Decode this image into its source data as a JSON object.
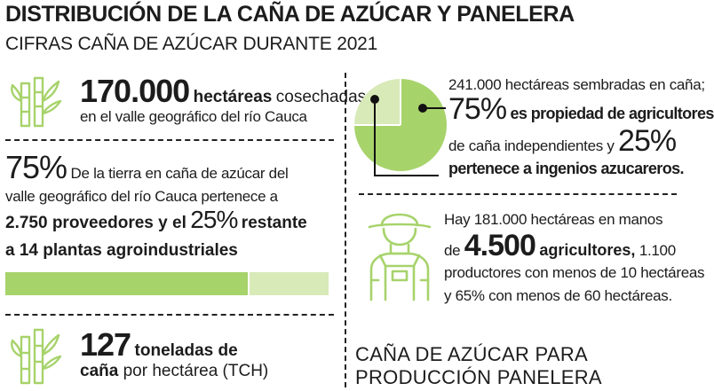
{
  "header": {
    "title": "DISTRIBUCIÓN DE LA CAÑA DE AZÚCAR Y PANELERA",
    "subtitle": "CIFRAS CAÑA DE AZÚCAR DURANTE 2021"
  },
  "block_hectares": {
    "value": "170.000",
    "unit": "hectáreas",
    "text1": "cosechadas",
    "text2": "en el valle geográfico del río Cauca",
    "icon": "sugarcane-icon"
  },
  "block_land": {
    "percent_big": "75%",
    "text1": "De la tierra en caña de azúcar del",
    "text2": "valle geográfico del río Cauca pertenece a",
    "text3_bold": "2.750 proveedores y el",
    "percent2": "25%",
    "text3_end": "restante",
    "text4_bold": "a 14 plantas agroindustriales",
    "bar_fraction": 0.75,
    "bar_color": "#a7d36b",
    "bar_bg_color": "#d8eab8"
  },
  "block_tch": {
    "value": "127",
    "unit": "toneladas de",
    "text2_bold": "caña",
    "text2": "por hectárea (TCH)",
    "icon": "sugarcane-icon"
  },
  "block_sown": {
    "text1": "241.000 hectáreas sembradas en caña;",
    "percent1": "75%",
    "text2": "es propiedad de agricultores",
    "text3": "de caña independientes y",
    "percent2": "25%",
    "text4": "pertenece a ingenios azucareros.",
    "pie_fraction": 0.75,
    "pie_color": "#a7d36b",
    "pie_bg_color": "#d8eab8"
  },
  "block_farmers": {
    "text1": "Hay 181.000 hectáreas en manos",
    "text2_pre": "de",
    "value": "4.500",
    "text2_bold": "agricultores,",
    "text2_end": "1.100",
    "text3": "productores con menos de 10 hectáreas",
    "text4": "y  65% con menos de 60 hectáreas.",
    "icon": "farmer-icon"
  },
  "footer_heading": {
    "line1": "CAÑA DE AZÚCAR PARA",
    "line2": "PRODUCCIÓN PANELERA"
  },
  "colors": {
    "accent": "#a7d36b",
    "accent_light": "#d8eab8",
    "text": "#1c1c1c"
  }
}
